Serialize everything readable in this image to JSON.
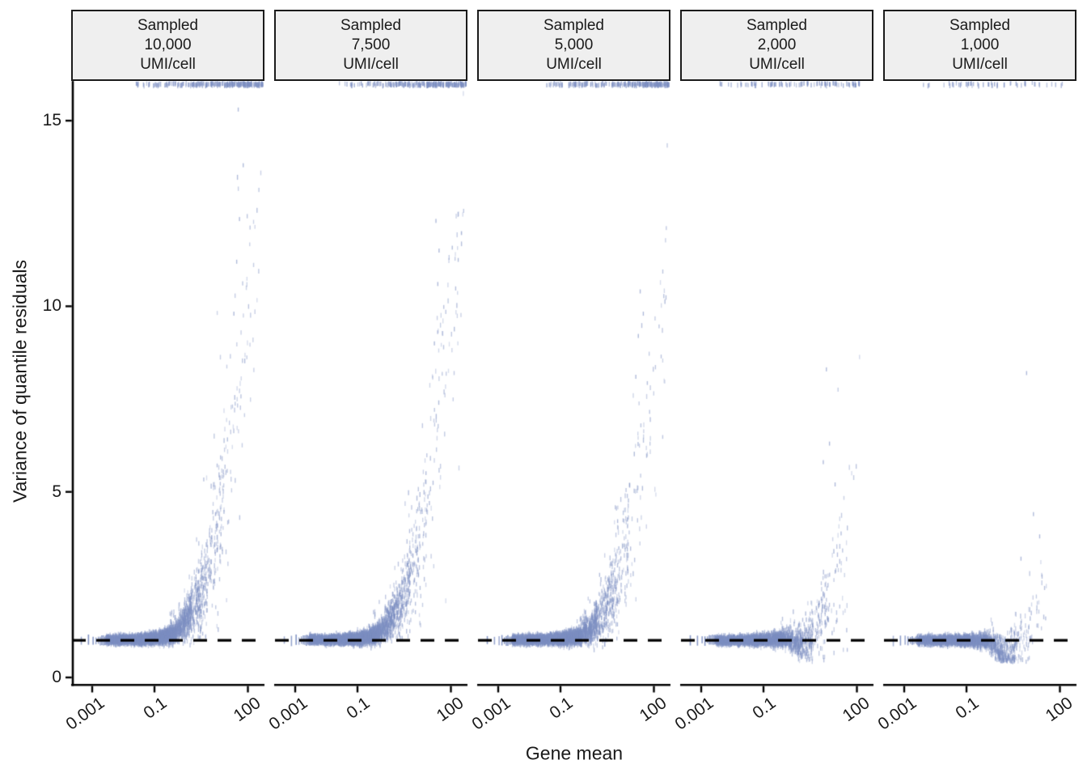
{
  "chart_data": {
    "type": "scatter",
    "title": "",
    "xlabel": "Gene mean",
    "ylabel": "Variance of quantile residuals",
    "legend": "none",
    "grid": "off",
    "x_axis": {
      "scale": "log10",
      "tick_labels": [
        "0.001",
        "0.1",
        "100"
      ],
      "tick_log10_positions": [
        -3,
        -1,
        2
      ],
      "range_log10": [
        -3.67,
        2.53
      ]
    },
    "y_axis": {
      "tick_labels": [
        "0",
        "5",
        "10",
        "15"
      ],
      "tick_values": [
        0,
        5,
        10,
        15
      ],
      "range": [
        0,
        16.1
      ]
    },
    "reference_line": {
      "y": 1,
      "style": "dashed",
      "color": "#000000"
    },
    "point_color": "#7c8ec1",
    "axis_color": "#000000",
    "strip_fill": "#efefef",
    "facets": [
      {
        "strip_label": "Sampled\n10,000\nUMI/cell",
        "umi_per_cell": "10,000",
        "band": {
          "n": 4200,
          "xsegs": [
            [
              -2.55,
              -2.0,
              0.16
            ],
            [
              -2.0,
              -1.4,
              0.22
            ],
            [
              -1.4,
              -0.8,
              0.24
            ],
            [
              -0.8,
              -0.3,
              0.17
            ],
            [
              -0.3,
              0.2,
              0.1
            ],
            [
              0.2,
              0.7,
              0.06
            ],
            [
              0.7,
              1.2,
              0.028
            ],
            [
              1.2,
              1.8,
              0.014
            ],
            [
              1.8,
              2.45,
              0.008
            ]
          ],
          "mean_knots": [
            [
              -3.6,
              1.01
            ],
            [
              -1.5,
              1.02
            ],
            [
              -0.9,
              1.06
            ],
            [
              -0.4,
              1.16
            ],
            [
              0,
              1.5
            ],
            [
              0.4,
              2.1
            ],
            [
              0.8,
              3.1
            ],
            [
              1.2,
              4.8
            ],
            [
              1.6,
              7.2
            ],
            [
              2.0,
              10.2
            ],
            [
              2.45,
              13.5
            ]
          ],
          "sigma_knots": [
            [
              -3.6,
              0.05
            ],
            [
              -1.5,
              0.06
            ],
            [
              -0.9,
              0.08
            ],
            [
              -0.4,
              0.12
            ],
            [
              0,
              0.22
            ],
            [
              0.4,
              0.4
            ],
            [
              0.8,
              0.65
            ],
            [
              1.2,
              1.0
            ],
            [
              1.6,
              1.5
            ],
            [
              2.45,
              2.0
            ]
          ]
        },
        "rug_log10x": [
          -3.35,
          -3.12,
          -2.97,
          -2.88,
          -2.8,
          -2.74,
          -2.69,
          -2.64,
          -2.6,
          -2.57
        ],
        "top_clipped": {
          "n": 240,
          "lx0": -1.9,
          "lx1": 2.5,
          "skew": 0.5
        },
        "outliers": [
          [
            1.69,
            15.3
          ],
          [
            1.73,
            12.35
          ],
          [
            1.64,
            11.2
          ],
          [
            1.55,
            9.8
          ],
          [
            1.85,
            13.8
          ]
        ]
      },
      {
        "strip_label": "Sampled\n7,500\nUMI/cell",
        "umi_per_cell": "7,500",
        "band": {
          "n": 4200,
          "xsegs": [
            [
              -2.55,
              -2.0,
              0.16
            ],
            [
              -2.0,
              -1.4,
              0.22
            ],
            [
              -1.4,
              -0.8,
              0.24
            ],
            [
              -0.8,
              -0.3,
              0.17
            ],
            [
              -0.3,
              0.2,
              0.1
            ],
            [
              0.2,
              0.7,
              0.06
            ],
            [
              0.7,
              1.2,
              0.028
            ],
            [
              1.2,
              1.8,
              0.014
            ],
            [
              1.8,
              2.45,
              0.008
            ]
          ],
          "mean_knots": [
            [
              -3.6,
              1.01
            ],
            [
              -1.5,
              1.02
            ],
            [
              -0.9,
              1.05
            ],
            [
              -0.4,
              1.14
            ],
            [
              0,
              1.45
            ],
            [
              0.4,
              2.0
            ],
            [
              0.8,
              2.95
            ],
            [
              1.2,
              4.6
            ],
            [
              1.6,
              6.9
            ],
            [
              2.0,
              9.8
            ],
            [
              2.45,
              13.0
            ]
          ],
          "sigma_knots": [
            [
              -3.6,
              0.05
            ],
            [
              -1.5,
              0.06
            ],
            [
              -0.9,
              0.08
            ],
            [
              -0.4,
              0.12
            ],
            [
              0,
              0.21
            ],
            [
              0.4,
              0.38
            ],
            [
              0.8,
              0.62
            ],
            [
              1.2,
              1.0
            ],
            [
              1.6,
              1.5
            ],
            [
              2.45,
              2.0
            ]
          ]
        },
        "rug_log10x": [
          -3.35,
          -3.12,
          -2.97,
          -2.88,
          -2.8,
          -2.74,
          -2.69,
          -2.64,
          -2.6,
          -2.57
        ],
        "top_clipped": {
          "n": 225,
          "lx0": -1.9,
          "lx1": 2.5,
          "skew": 0.5
        },
        "outliers": [
          [
            1.52,
            12.3
          ],
          [
            1.58,
            10.6
          ],
          [
            1.47,
            9.0
          ],
          [
            1.62,
            11.5
          ]
        ]
      },
      {
        "strip_label": "Sampled\n5,000\nUMI/cell",
        "umi_per_cell": "5,000",
        "band": {
          "n": 4200,
          "xsegs": [
            [
              -2.55,
              -2.0,
              0.16
            ],
            [
              -2.0,
              -1.4,
              0.22
            ],
            [
              -1.4,
              -0.8,
              0.24
            ],
            [
              -0.8,
              -0.3,
              0.17
            ],
            [
              -0.3,
              0.2,
              0.1
            ],
            [
              0.2,
              0.7,
              0.06
            ],
            [
              0.7,
              1.2,
              0.028
            ],
            [
              1.2,
              1.8,
              0.012
            ],
            [
              1.8,
              2.45,
              0.006
            ]
          ],
          "mean_knots": [
            [
              -3.6,
              1.0
            ],
            [
              -1.5,
              1.02
            ],
            [
              -0.9,
              1.04
            ],
            [
              -0.4,
              1.11
            ],
            [
              0,
              1.35
            ],
            [
              0.4,
              1.8
            ],
            [
              0.8,
              2.6
            ],
            [
              1.2,
              3.9
            ],
            [
              1.6,
              5.8
            ],
            [
              2.0,
              8.2
            ],
            [
              2.45,
              10.8
            ]
          ],
          "sigma_knots": [
            [
              -3.6,
              0.05
            ],
            [
              -1.5,
              0.06
            ],
            [
              -0.9,
              0.08
            ],
            [
              -0.4,
              0.11
            ],
            [
              0,
              0.2
            ],
            [
              0.4,
              0.36
            ],
            [
              0.8,
              0.6
            ],
            [
              1.2,
              0.95
            ],
            [
              1.6,
              1.4
            ],
            [
              2.45,
              1.9
            ]
          ]
        },
        "rug_log10x": [
          -3.35,
          -3.12,
          -2.97,
          -2.88,
          -2.8,
          -2.74,
          -2.69,
          -2.64,
          -2.6,
          -2.57
        ],
        "top_clipped": {
          "n": 220,
          "lx0": -1.9,
          "lx1": 2.5,
          "skew": 0.52
        },
        "outliers": [
          [
            1.56,
            10.4
          ],
          [
            1.5,
            9.2
          ],
          [
            1.42,
            8.1
          ],
          [
            1.66,
            9.8
          ]
        ]
      },
      {
        "strip_label": "Sampled\n2,000\nUMI/cell",
        "umi_per_cell": "2,000",
        "band": {
          "n": 3200,
          "xsegs": [
            [
              -2.55,
              -2.0,
              0.17
            ],
            [
              -2.0,
              -1.4,
              0.23
            ],
            [
              -1.4,
              -0.8,
              0.24
            ],
            [
              -0.8,
              -0.3,
              0.17
            ],
            [
              -0.3,
              0.2,
              0.1
            ],
            [
              0.2,
              0.6,
              0.05
            ],
            [
              0.6,
              1.1,
              0.026
            ],
            [
              1.1,
              1.7,
              0.012
            ],
            [
              1.7,
              2.2,
              0.002
            ]
          ],
          "mean_knots": [
            [
              -3.6,
              1.0
            ],
            [
              -1.5,
              1.0
            ],
            [
              -0.8,
              1.02
            ],
            [
              -0.3,
              1.06
            ],
            [
              0.2,
              1.15
            ],
            [
              0.6,
              1.35
            ],
            [
              1.0,
              1.9
            ],
            [
              1.4,
              2.9
            ],
            [
              1.8,
              4.2
            ],
            [
              2.2,
              5.5
            ]
          ],
          "sigma_knots": [
            [
              -3.6,
              0.05
            ],
            [
              -1.5,
              0.06
            ],
            [
              -0.8,
              0.08
            ],
            [
              -0.3,
              0.11
            ],
            [
              0.2,
              0.18
            ],
            [
              0.6,
              0.35
            ],
            [
              1.0,
              0.65
            ],
            [
              1.4,
              1.1
            ],
            [
              2.2,
              1.5
            ]
          ],
          "dip": {
            "center": 0.35,
            "width": 0.45,
            "depth": 0.45
          }
        },
        "rug_log10x": [
          -3.35,
          -3.12,
          -2.97,
          -2.88,
          -2.8,
          -2.74,
          -2.69,
          -2.64,
          -2.6,
          -2.57
        ],
        "top_clipped": {
          "n": 100,
          "lx0": -2.55,
          "lx1": 2.2,
          "skew": 0.75
        },
        "outliers": [
          [
            1.02,
            8.3
          ],
          [
            1.12,
            6.3
          ],
          [
            0.92,
            5.8
          ],
          [
            1.3,
            5.2
          ]
        ]
      },
      {
        "strip_label": "Sampled\n1,000\nUMI/cell",
        "umi_per_cell": "1,000",
        "band": {
          "n": 2800,
          "xsegs": [
            [
              -2.55,
              -2.0,
              0.18
            ],
            [
              -2.0,
              -1.4,
              0.24
            ],
            [
              -1.4,
              -0.8,
              0.24
            ],
            [
              -0.8,
              -0.3,
              0.16
            ],
            [
              -0.3,
              0.2,
              0.1
            ],
            [
              0.2,
              0.6,
              0.045
            ],
            [
              0.6,
              1.1,
              0.02
            ],
            [
              1.1,
              1.6,
              0.008
            ]
          ],
          "mean_knots": [
            [
              -3.6,
              1.0
            ],
            [
              -1.5,
              1.0
            ],
            [
              -0.8,
              1.0
            ],
            [
              -0.3,
              1.0
            ],
            [
              0.1,
              0.95
            ],
            [
              0.45,
              0.88
            ],
            [
              0.8,
              1.05
            ],
            [
              1.2,
              1.7
            ],
            [
              1.6,
              2.6
            ],
            [
              2.1,
              3.8
            ]
          ],
          "sigma_knots": [
            [
              -3.6,
              0.05
            ],
            [
              -1.5,
              0.06
            ],
            [
              -0.8,
              0.08
            ],
            [
              -0.3,
              0.1
            ],
            [
              0.2,
              0.15
            ],
            [
              0.6,
              0.3
            ],
            [
              1.0,
              0.6
            ],
            [
              1.6,
              1.0
            ],
            [
              2.1,
              1.3
            ]
          ],
          "dip": {
            "center": 0.25,
            "width": 0.4,
            "depth": 0.5
          }
        },
        "rug_log10x": [
          -3.35,
          -3.12,
          -2.97,
          -2.88,
          -2.8,
          -2.74,
          -2.69,
          -2.64,
          -2.6,
          -2.57
        ],
        "top_clipped": {
          "n": 55,
          "lx0": -2.65,
          "lx1": 2.1,
          "skew": 0.8
        },
        "outliers": [
          [
            0.93,
            8.2
          ],
          [
            1.15,
            4.4
          ],
          [
            1.35,
            3.8
          ],
          [
            0.75,
            3.2
          ]
        ]
      }
    ]
  }
}
